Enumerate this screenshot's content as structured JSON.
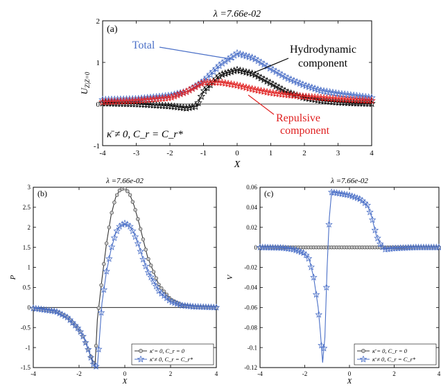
{
  "chart_data": [
    {
      "id": "a",
      "type": "line",
      "title": "λ =7.66e-02",
      "panel_label": "(a)",
      "xlabel": "X",
      "ylabel": "U_Z|Z=0",
      "xlim": [
        -4,
        4
      ],
      "ylim": [
        -1,
        2
      ],
      "xticks": [
        -4,
        -3,
        -2,
        -1,
        0,
        1,
        2,
        3,
        4
      ],
      "yticks": [
        -1,
        0,
        1,
        2
      ],
      "colors": {
        "total": "#4a6fc7",
        "hydro": "#000000",
        "repulsive": "#e02020"
      },
      "annotations": [
        {
          "text": "Total",
          "color": "#4a6fc7"
        },
        {
          "text": "Hydrodynamic",
          "color": "#000000"
        },
        {
          "text": "component",
          "color": "#000000"
        },
        {
          "text": "Repulsive",
          "color": "#e02020"
        },
        {
          "text": "component",
          "color": "#e02020"
        }
      ],
      "condition_label": "κ̄ ≠ 0, C_r = C_r*",
      "series": [
        {
          "key": "total",
          "marker": "star",
          "x": [
            -4,
            -3,
            -2,
            -1.5,
            -1,
            -0.5,
            0,
            0.5,
            1,
            1.5,
            2,
            2.5,
            3,
            3.5,
            4
          ],
          "y": [
            0.1,
            0.12,
            0.2,
            0.3,
            0.55,
            0.95,
            1.22,
            1.1,
            0.85,
            0.62,
            0.45,
            0.32,
            0.25,
            0.2,
            0.15
          ]
        },
        {
          "key": "hydro",
          "marker": "star",
          "x": [
            -4,
            -3,
            -2,
            -1.5,
            -1.2,
            -1,
            -0.5,
            0,
            0.5,
            1,
            1.5,
            2,
            2.5,
            3,
            3.5,
            4
          ],
          "y": [
            0.02,
            0.0,
            -0.05,
            -0.1,
            -0.05,
            0.3,
            0.7,
            0.82,
            0.72,
            0.5,
            0.28,
            0.15,
            0.08,
            0.04,
            0.02,
            0.01
          ]
        },
        {
          "key": "repulsive",
          "marker": "star",
          "x": [
            -4,
            -3,
            -2,
            -1.5,
            -1,
            -0.5,
            0,
            0.5,
            1,
            1.5,
            2,
            2.5,
            3,
            3.5,
            4
          ],
          "y": [
            0.05,
            0.08,
            0.15,
            0.3,
            0.52,
            0.52,
            0.45,
            0.35,
            0.27,
            0.22,
            0.18,
            0.15,
            0.12,
            0.1,
            0.08
          ]
        }
      ]
    },
    {
      "id": "b",
      "type": "line",
      "title": "λ =7.66e-02",
      "panel_label": "(b)",
      "xlabel": "X",
      "ylabel": "P",
      "xlim": [
        -4,
        4
      ],
      "ylim": [
        -1.5,
        3
      ],
      "xticks": [
        -4,
        -2,
        0,
        2,
        4
      ],
      "yticks": [
        -1.5,
        -1,
        -0.5,
        0,
        0.5,
        1,
        1.5,
        2,
        2.5,
        3
      ],
      "legend": {
        "placement": "bottom-right",
        "entries": [
          "κ̄ = 0, C_r = 0",
          "κ̄ ≠ 0, C_r = C_r*"
        ]
      },
      "series": [
        {
          "name": "κ̄ = 0, C_r = 0",
          "marker": "circle",
          "color": "#333333",
          "x": [
            -4,
            -3,
            -2.5,
            -2,
            -1.8,
            -1.6,
            -1.4,
            -1.3,
            -1.2,
            -1,
            -0.8,
            -0.6,
            -0.4,
            -0.2,
            0,
            0.2,
            0.4,
            0.6,
            0.8,
            1,
            1.5,
            2,
            2.5,
            3,
            4
          ],
          "y": [
            -0.02,
            -0.1,
            -0.25,
            -0.55,
            -0.75,
            -1.05,
            -1.35,
            -1.45,
            -0.3,
            0.7,
            1.6,
            2.3,
            2.75,
            2.95,
            2.97,
            2.85,
            2.55,
            2.15,
            1.7,
            1.25,
            0.55,
            0.2,
            0.06,
            0.02,
            0.0
          ]
        },
        {
          "name": "κ̄ ≠ 0, C_r = C_r*",
          "marker": "star",
          "color": "#4a6fc7",
          "x": [
            -4,
            -3,
            -2.5,
            -2,
            -1.8,
            -1.6,
            -1.4,
            -1.2,
            -1.1,
            -1,
            -0.8,
            -0.6,
            -0.4,
            -0.2,
            0,
            0.2,
            0.4,
            0.6,
            0.8,
            1,
            1.5,
            2,
            2.5,
            3,
            4
          ],
          "y": [
            -0.02,
            -0.1,
            -0.25,
            -0.55,
            -0.75,
            -1.05,
            -1.4,
            -1.5,
            -0.7,
            0.1,
            0.9,
            1.45,
            1.85,
            2.05,
            2.1,
            2.05,
            1.85,
            1.55,
            1.2,
            0.9,
            0.4,
            0.15,
            0.05,
            0.02,
            0.0
          ]
        }
      ]
    },
    {
      "id": "c",
      "type": "line",
      "title": "λ =7.66e-02",
      "panel_label": "(c)",
      "xlabel": "X",
      "ylabel": "V",
      "xlim": [
        -4,
        4
      ],
      "ylim": [
        -0.12,
        0.06
      ],
      "xticks": [
        -4,
        -2,
        0,
        2,
        4
      ],
      "yticks": [
        -0.12,
        -0.1,
        -0.08,
        -0.06,
        -0.04,
        -0.02,
        0,
        0.02,
        0.04,
        0.06
      ],
      "legend": {
        "placement": "bottom-right",
        "entries": [
          "κ̄ = 0, C_r = 0",
          "κ̄ ≠ 0, C_r = C_r*"
        ]
      },
      "series": [
        {
          "name": "κ̄ = 0, C_r = 0",
          "marker": "circle",
          "color": "#333333",
          "x": [
            -4,
            -3,
            -2,
            -1,
            0,
            1,
            2,
            3,
            4
          ],
          "y": [
            0,
            0,
            0,
            0,
            0,
            0,
            0,
            0,
            0
          ]
        },
        {
          "name": "κ̄ ≠ 0, C_r = C_r*",
          "marker": "star",
          "color": "#4a6fc7",
          "x": [
            -4,
            -3,
            -2.5,
            -2,
            -1.8,
            -1.6,
            -1.4,
            -1.3,
            -1.2,
            -1.1,
            -1,
            -0.9,
            -0.8,
            -0.5,
            0,
            0.5,
            0.8,
            1,
            1.2,
            1.4,
            1.6,
            2,
            3,
            4
          ],
          "y": [
            0,
            -0.0005,
            -0.002,
            -0.006,
            -0.012,
            -0.03,
            -0.06,
            -0.085,
            -0.115,
            -0.09,
            -0.02,
            0.03,
            0.055,
            0.054,
            0.052,
            0.048,
            0.042,
            0.03,
            0.012,
            0.002,
            -0.002,
            -0.001,
            0,
            0
          ]
        }
      ]
    }
  ]
}
